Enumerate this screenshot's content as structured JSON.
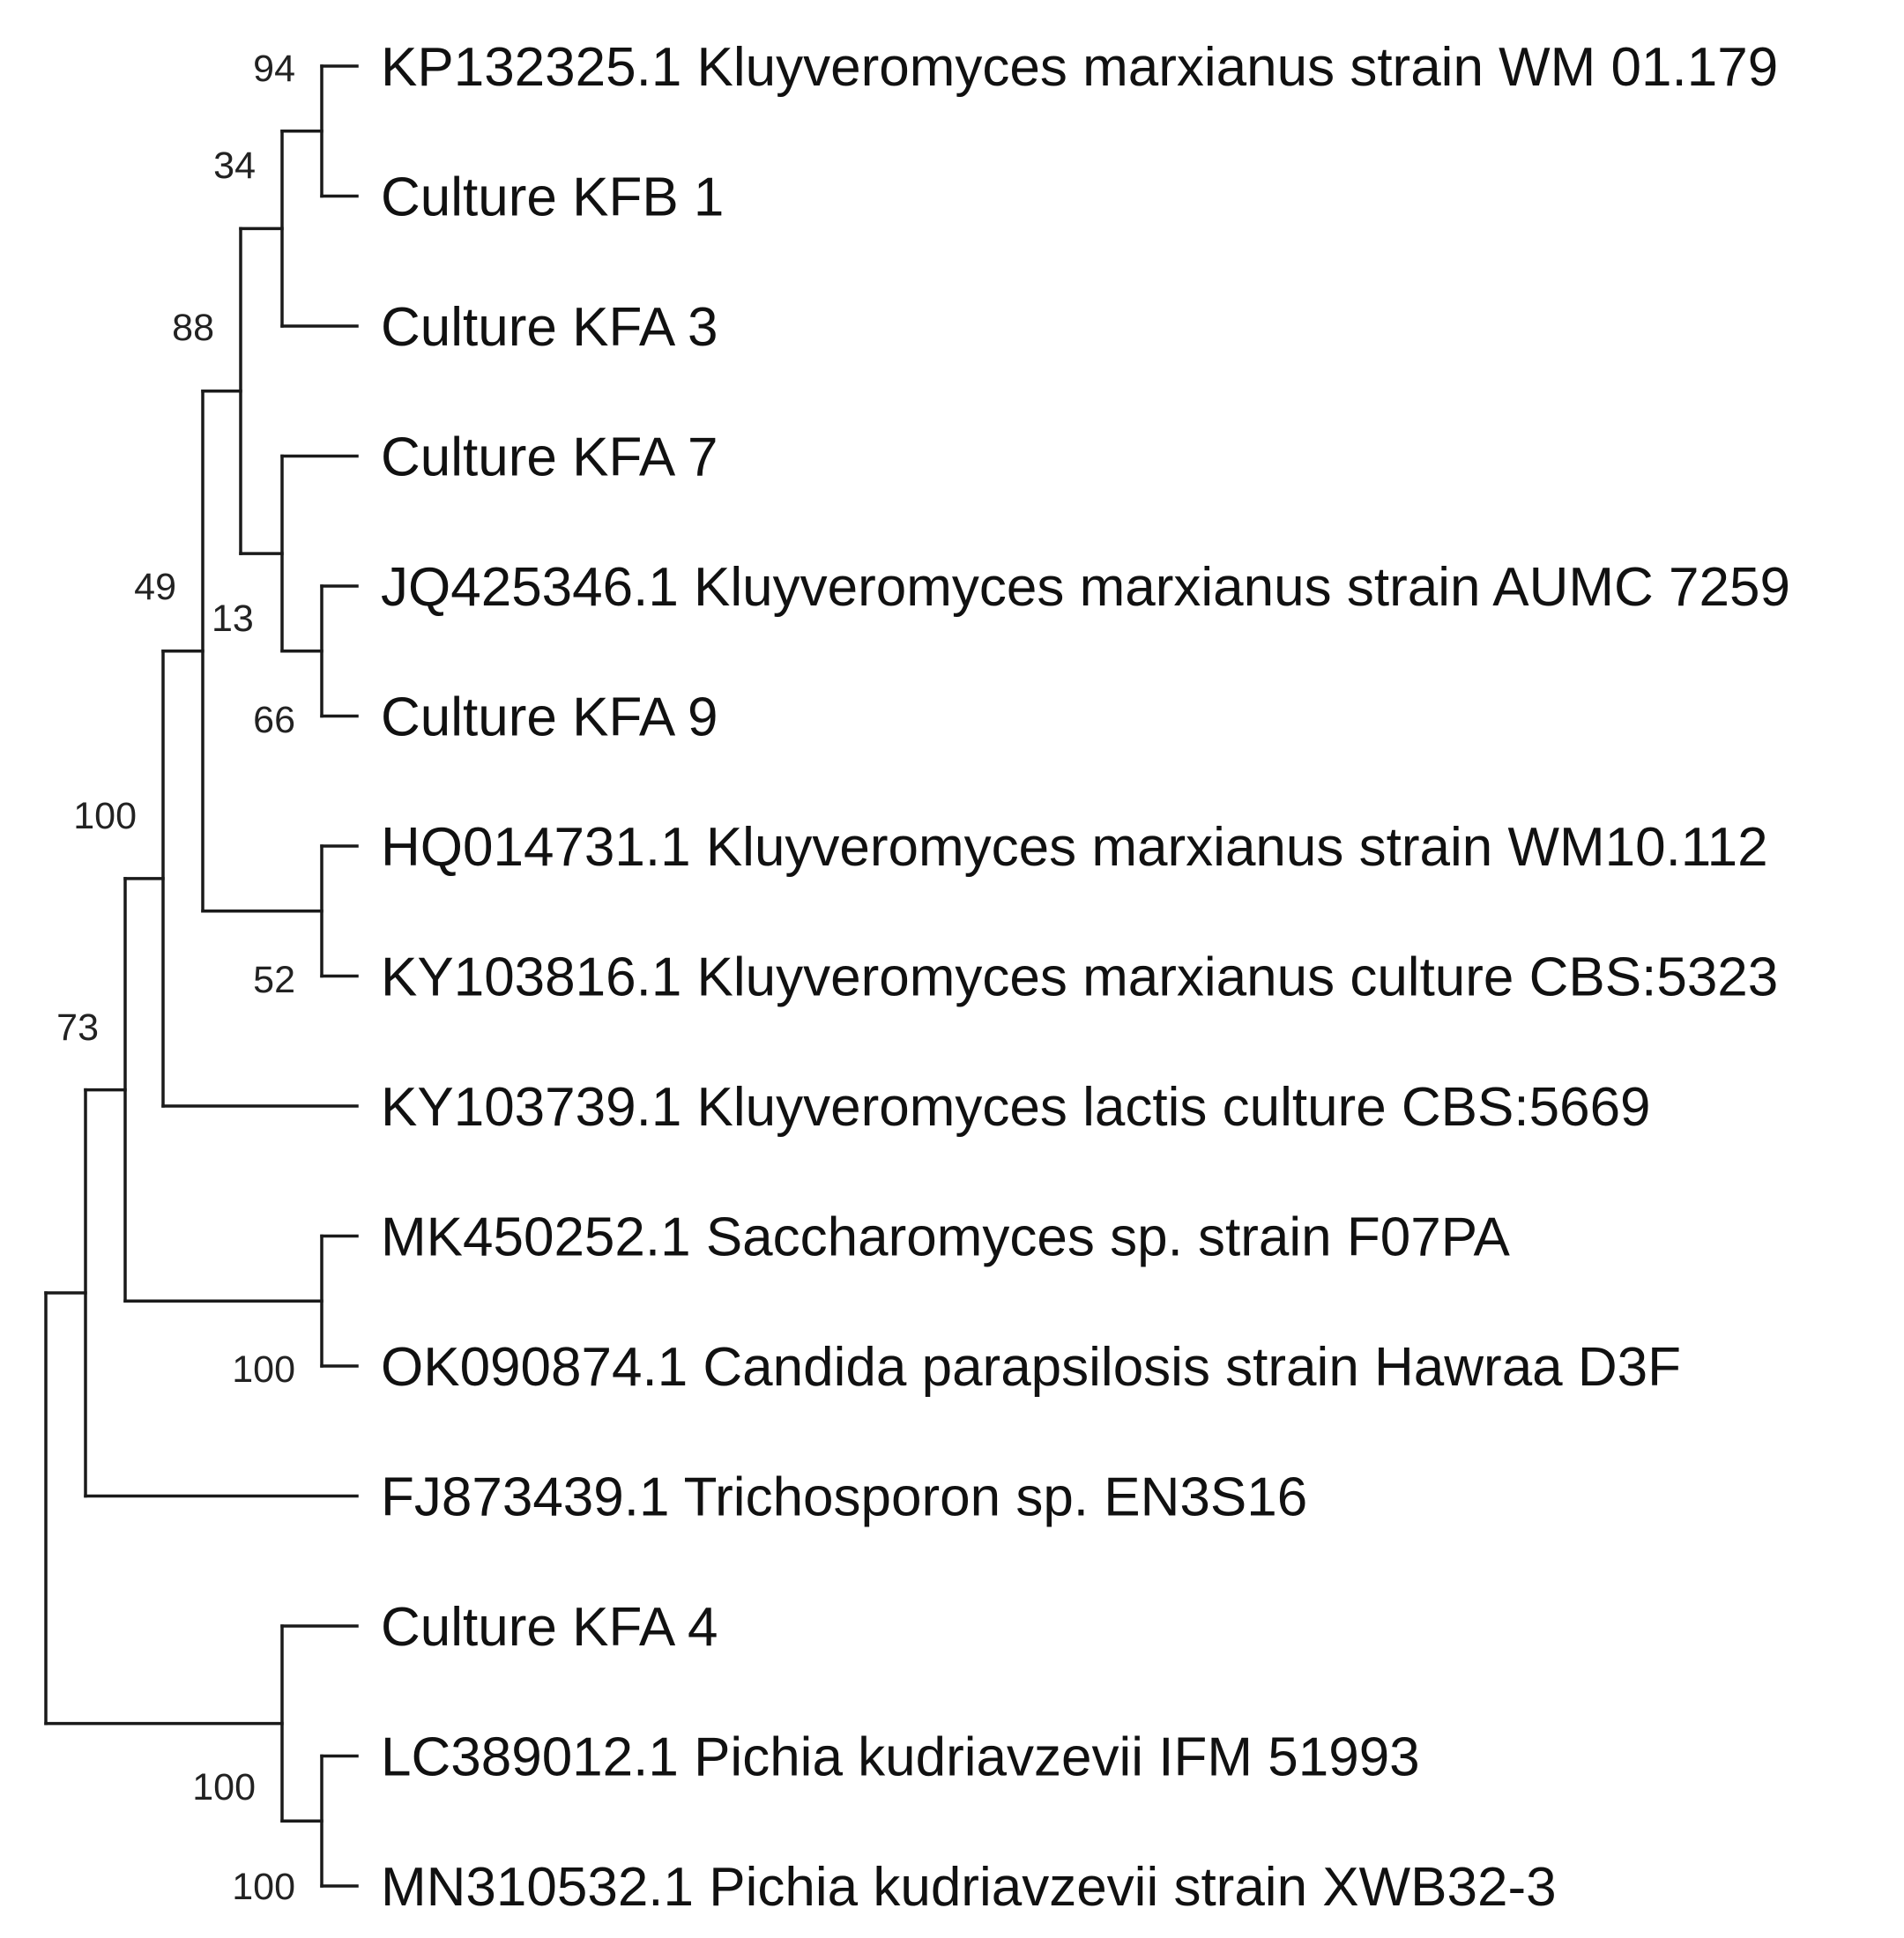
{
  "taxa": [
    "KP132325.1 Kluyveromyces marxianus strain WM 01.179",
    "Culture KFB 1",
    "Culture KFA 3",
    "Culture KFA 7",
    "JQ425346.1 Kluyveromyces marxianus strain AUMC 7259",
    "Culture KFA 9",
    "HQ014731.1 Kluyveromyces marxianus strain WM10.112",
    "KY103816.1 Kluyveromyces marxianus culture CBS:5323",
    "KY103739.1 Kluyveromyces lactis culture CBS:5669",
    "MK450252.1 Saccharomyces sp. strain F07PA",
    "OK090874.1 Candida parapsilosis strain Hawraa D3F",
    "FJ873439.1 Trichosporon sp. EN3S16",
    "Culture KFA 4",
    "LC389012.1 Pichia kudriavzevii IFM 51993",
    "MN310532.1 Pichia kudriavzevii strain XWB32-3"
  ],
  "clades": [
    {
      "id": "n1",
      "children": [
        0,
        1
      ],
      "support": "94"
    },
    {
      "id": "n2",
      "children": [
        "n1",
        2
      ],
      "support": "34"
    },
    {
      "id": "n3",
      "children": [
        4,
        5
      ],
      "support": "66"
    },
    {
      "id": "n4",
      "children": [
        3,
        "n3"
      ],
      "support": "13"
    },
    {
      "id": "n5",
      "children": [
        "n2",
        "n4"
      ],
      "support": "88"
    },
    {
      "id": "n6",
      "children": [
        6,
        7
      ],
      "support": "52"
    },
    {
      "id": "n7",
      "children": [
        "n5",
        "n6"
      ],
      "support": "49"
    },
    {
      "id": "n8",
      "children": [
        "n7",
        8
      ],
      "support": "100"
    },
    {
      "id": "n9",
      "children": [
        9,
        10
      ],
      "support": "100"
    },
    {
      "id": "n10",
      "children": [
        "n8",
        "n9"
      ],
      "support": "73"
    },
    {
      "id": "n11",
      "children": [
        "n10",
        11
      ],
      "support": ""
    },
    {
      "id": "n12",
      "children": [
        13,
        14
      ],
      "support": "100"
    },
    {
      "id": "n13",
      "children": [
        12,
        "n12"
      ],
      "support": "100"
    },
    {
      "id": "root",
      "children": [
        "n11",
        "n13"
      ],
      "support": ""
    }
  ]
}
